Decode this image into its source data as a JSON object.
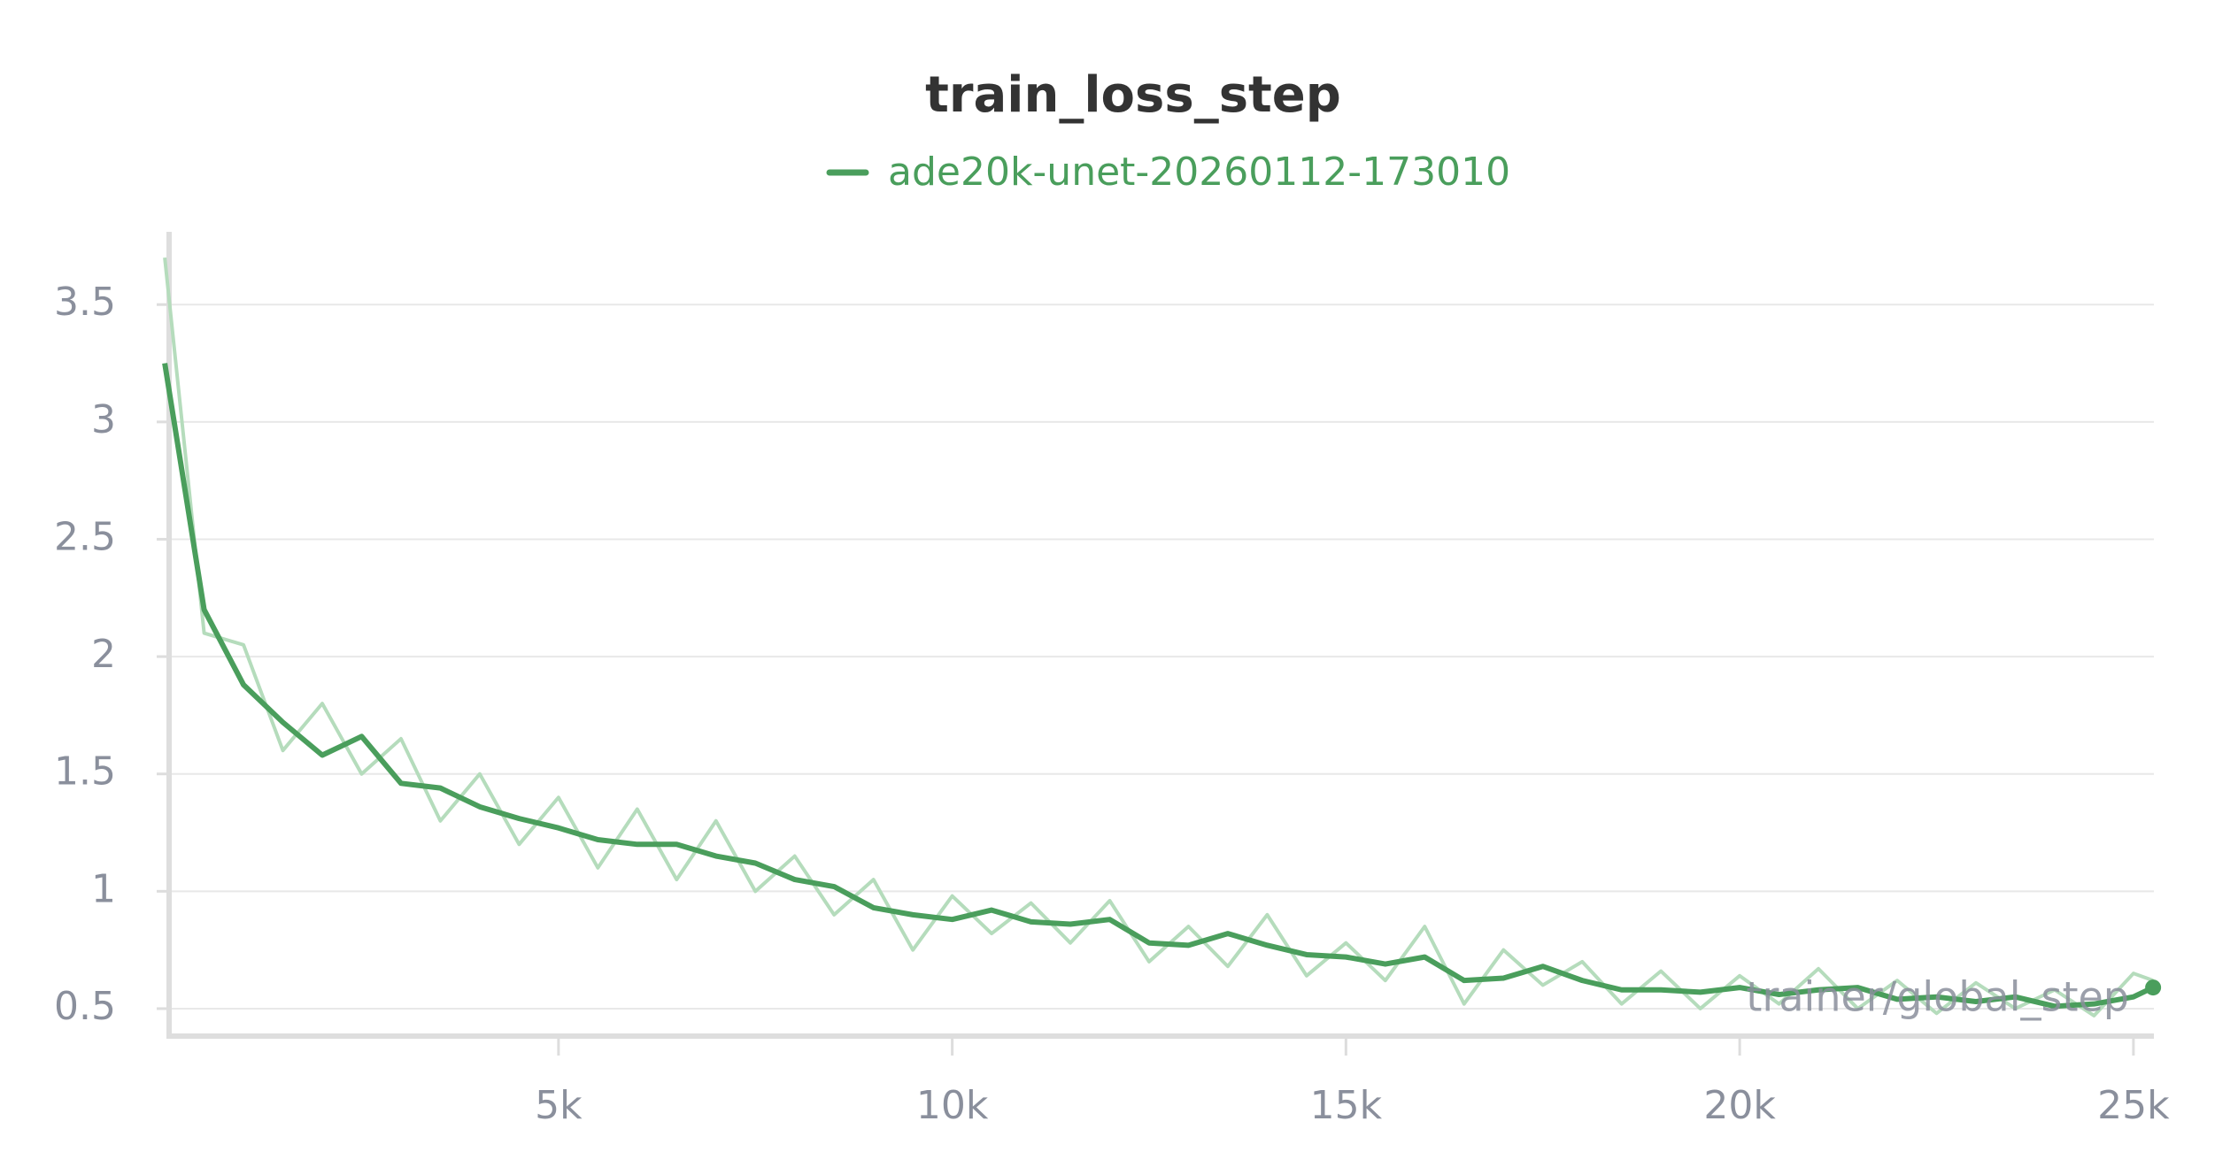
{
  "chart_data": {
    "type": "line",
    "title": "train_loss_step",
    "x_label": "trainer/global_step",
    "x": [
      0,
      500,
      1000,
      1500,
      2000,
      2500,
      3000,
      3500,
      4000,
      4500,
      5000,
      5500,
      6000,
      6500,
      7000,
      7500,
      8000,
      8500,
      9000,
      9500,
      10000,
      10500,
      11000,
      11500,
      12000,
      12500,
      13000,
      13500,
      14000,
      14500,
      15000,
      15500,
      16000,
      16500,
      17000,
      17500,
      18000,
      18500,
      19000,
      19500,
      20000,
      20500,
      21000,
      21500,
      22000,
      22500,
      23000,
      23500,
      24000,
      24500,
      25000,
      25250
    ],
    "series": [
      {
        "name": "ade20k-unet-20260112-173010",
        "color": "#4a9e5c",
        "values": [
          3.25,
          2.2,
          1.88,
          1.72,
          1.58,
          1.66,
          1.46,
          1.44,
          1.36,
          1.31,
          1.27,
          1.22,
          1.2,
          1.2,
          1.15,
          1.12,
          1.05,
          1.02,
          0.93,
          0.9,
          0.88,
          0.92,
          0.87,
          0.86,
          0.88,
          0.78,
          0.77,
          0.82,
          0.77,
          0.73,
          0.72,
          0.69,
          0.72,
          0.62,
          0.63,
          0.68,
          0.62,
          0.58,
          0.58,
          0.57,
          0.59,
          0.56,
          0.58,
          0.59,
          0.54,
          0.55,
          0.53,
          0.55,
          0.51,
          0.52,
          0.55,
          0.59
        ]
      },
      {
        "color": "#b5dcbc",
        "values": [
          3.7,
          2.1,
          2.05,
          1.6,
          1.8,
          1.5,
          1.65,
          1.3,
          1.5,
          1.2,
          1.4,
          1.1,
          1.35,
          1.05,
          1.3,
          1.0,
          1.15,
          0.9,
          1.05,
          0.75,
          0.98,
          0.82,
          0.95,
          0.78,
          0.96,
          0.7,
          0.85,
          0.68,
          0.9,
          0.64,
          0.78,
          0.62,
          0.85,
          0.52,
          0.75,
          0.6,
          0.7,
          0.52,
          0.66,
          0.5,
          0.64,
          0.52,
          0.67,
          0.5,
          0.62,
          0.48,
          0.61,
          0.5,
          0.58,
          0.47,
          0.65,
          0.62
        ]
      }
    ],
    "xlim": [
      55,
      25260
    ],
    "ylim": [
      0.383,
      3.81
    ],
    "xticks": [
      {
        "value": 5000,
        "label": "5k"
      },
      {
        "value": 10000,
        "label": "10k"
      },
      {
        "value": 15000,
        "label": "15k"
      },
      {
        "value": 20000,
        "label": "20k"
      },
      {
        "value": 25000,
        "label": "25k"
      }
    ],
    "yticks": [
      0.5,
      1,
      1.5,
      2,
      2.5,
      3,
      3.5
    ],
    "grid": true
  }
}
